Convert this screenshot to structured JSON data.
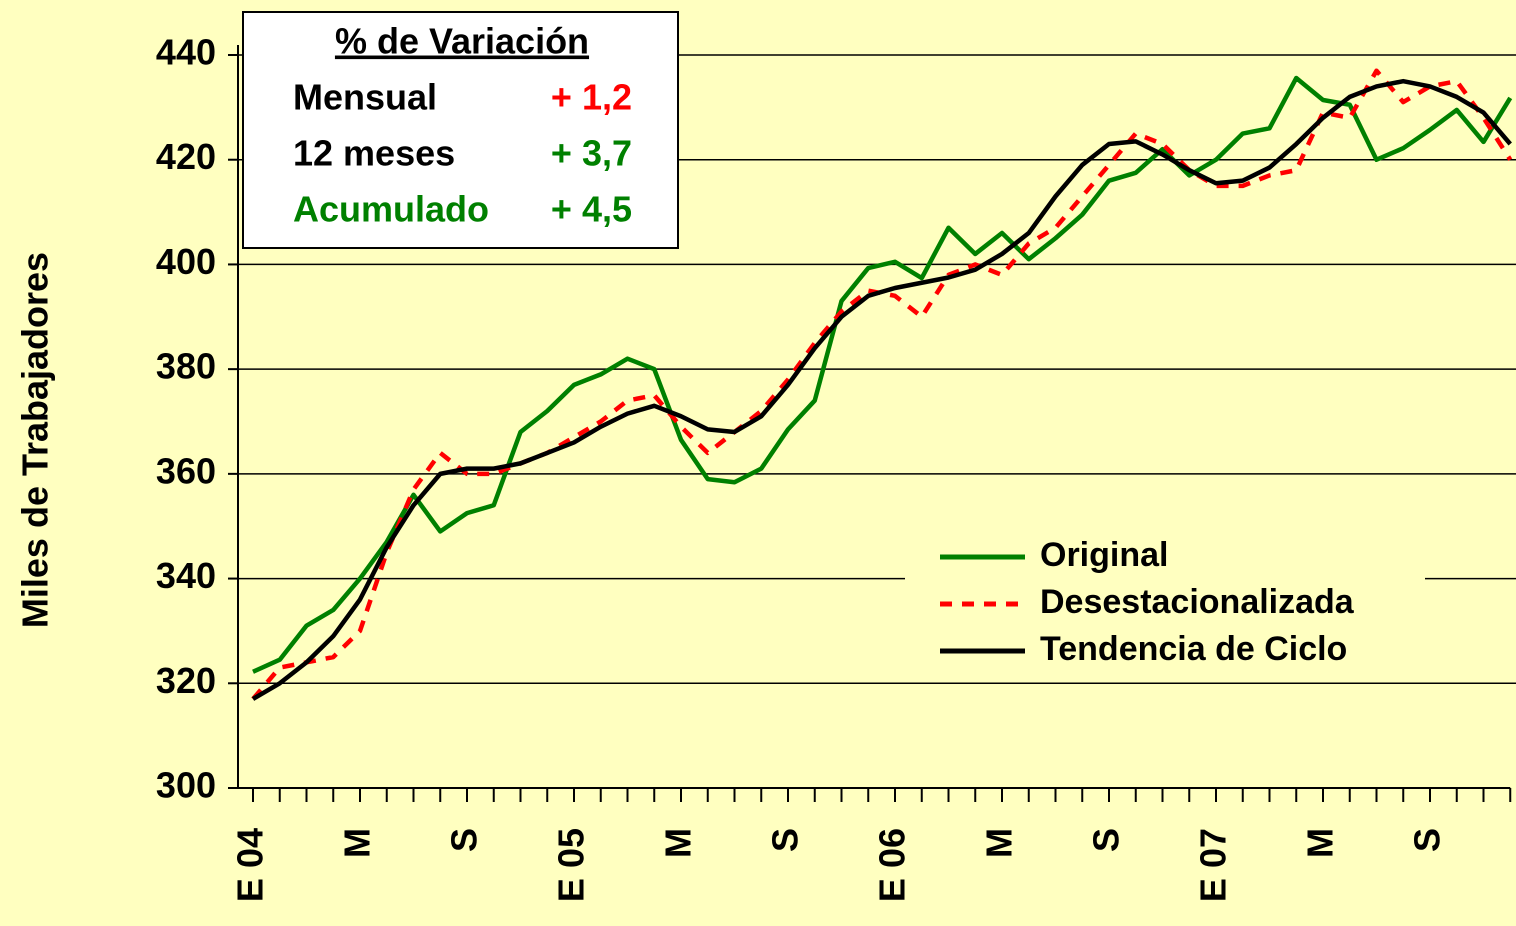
{
  "chart_data": {
    "type": "line",
    "y_label": "Miles de Trabajadores",
    "categories": [
      "E 04",
      null,
      null,
      null,
      "M",
      null,
      null,
      null,
      "S",
      null,
      null,
      null,
      "E 05",
      null,
      null,
      null,
      "M",
      null,
      null,
      null,
      "S",
      null,
      null,
      null,
      "E 06",
      null,
      null,
      null,
      "M",
      null,
      null,
      null,
      "S",
      null,
      null,
      null,
      "E 07",
      null,
      null,
      null,
      "M",
      null,
      null,
      null,
      "S",
      null,
      null,
      null
    ],
    "series": [
      {
        "name": "Original",
        "color": "#008000",
        "dash": false,
        "values": [
          322.2,
          324.5,
          331,
          334,
          340,
          347,
          356,
          349,
          352.5,
          354,
          368,
          372,
          377,
          379,
          382,
          380,
          366.5,
          359,
          358.4,
          361,
          368.5,
          374,
          393,
          399.3,
          400.5,
          397.4,
          407,
          402,
          406,
          401,
          405,
          409.5,
          416,
          417.5,
          422,
          417,
          420,
          425,
          426,
          435.6,
          431.4,
          430.5,
          420,
          422.2,
          425.7,
          429.5,
          423.4,
          431.8
        ]
      },
      {
        "name": "Desestacionalizada",
        "color": "#ff0000",
        "dash": true,
        "values": [
          317,
          323,
          324,
          325,
          330,
          345,
          357,
          364,
          360,
          360,
          362,
          364,
          367,
          370,
          374,
          375,
          369,
          364,
          368,
          372,
          378,
          385,
          391,
          395,
          394,
          390,
          398,
          400,
          398,
          404,
          407,
          413,
          419,
          425,
          423,
          418,
          415,
          415,
          417,
          418,
          429,
          428,
          437,
          431,
          434,
          435,
          428,
          420
        ]
      },
      {
        "name": "Tendencia de Ciclo",
        "color": "#000000",
        "dash": false,
        "values": [
          317,
          320,
          324,
          329,
          336,
          346,
          354,
          360,
          361,
          361,
          362,
          364,
          366,
          369,
          371.5,
          373,
          371,
          368.5,
          368,
          371,
          377,
          384,
          390,
          394,
          395.5,
          396.5,
          397.5,
          399,
          402,
          406,
          413,
          419,
          423,
          423.5,
          421,
          418,
          415.5,
          416,
          418.5,
          423,
          428,
          432,
          434,
          435,
          434,
          432,
          429,
          423
        ]
      }
    ],
    "ylim": [
      300,
      440
    ],
    "yticks": [
      300,
      320,
      340,
      360,
      380,
      400,
      420,
      440
    ],
    "grid": true,
    "legend": "lower right",
    "background": "#ffffc0",
    "variation_box": {
      "title": "% de Variación",
      "rows": [
        {
          "label": "Mensual",
          "value": "+ 1,2",
          "label_color": "#000000",
          "value_color": "#ff0000"
        },
        {
          "label": "12 meses",
          "value": "+ 3,7",
          "label_color": "#000000",
          "value_color": "#008000"
        },
        {
          "label": "Acumulado",
          "value": "+ 4,5",
          "label_color": "#008000",
          "value_color": "#008000"
        }
      ]
    }
  }
}
